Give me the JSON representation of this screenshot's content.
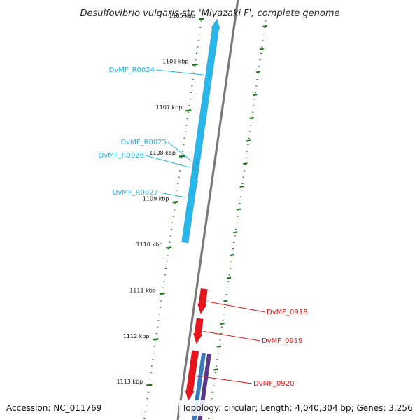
{
  "title": "Desulfovibrio vulgaris str. 'Miyazaki F', complete genome",
  "accession": "Accession: NC_011769",
  "topology": "Topology: circular; Length: 4,040,304 bp; Genes: 3,256",
  "ticks": [
    {
      "kbp": 1105,
      "label": "1105 kbp"
    },
    {
      "kbp": 1106,
      "label": "1106 kbp"
    },
    {
      "kbp": 1107,
      "label": "1107 kbp"
    },
    {
      "kbp": 1108,
      "label": "1108 kbp"
    },
    {
      "kbp": 1109,
      "label": "1109 kbp"
    },
    {
      "kbp": 1110,
      "label": "1110 kbp"
    },
    {
      "kbp": 1111,
      "label": "1111 kbp"
    },
    {
      "kbp": 1112,
      "label": "1112 kbp"
    },
    {
      "kbp": 1113,
      "label": "1113 kbp"
    }
  ],
  "genes": [
    {
      "name": "DvMF_R0024",
      "start_kbp": 1105.0,
      "end_kbp": 1108.8,
      "strand": "-",
      "color": "#29b6e8"
    },
    {
      "name": "DvMF_R0025",
      "start_kbp": 1108.05,
      "end_kbp": 1108.15,
      "strand": "-",
      "color": "#29b6e8"
    },
    {
      "name": "DvMF_R0026",
      "start_kbp": 1108.2,
      "end_kbp": 1108.3,
      "strand": "-",
      "color": "#29b6e8"
    },
    {
      "name": "DvMF_R0027",
      "start_kbp": 1108.35,
      "end_kbp": 1109.9,
      "strand": "-",
      "color": "#29b6e8"
    },
    {
      "name": "DvMF_0918",
      "start_kbp": 1110.9,
      "end_kbp": 1111.45,
      "strand": "+",
      "color": "#e8141b"
    },
    {
      "name": "DvMF_0919",
      "start_kbp": 1111.55,
      "end_kbp": 1112.1,
      "strand": "+",
      "color": "#e8141b"
    },
    {
      "name": "DvMF_0920",
      "start_kbp": 1112.25,
      "end_kbp": 1113.35,
      "strand": "+",
      "color": "#e8141b"
    }
  ],
  "colors": {
    "rna_label": "#1fb4e3",
    "cds_label": "#d81a1a",
    "tick": "#1f7a1f",
    "backbone": "#7a7a7a",
    "extra_feature_blue": "#3a7abf",
    "extra_feature_purple": "#5a3a8a"
  }
}
